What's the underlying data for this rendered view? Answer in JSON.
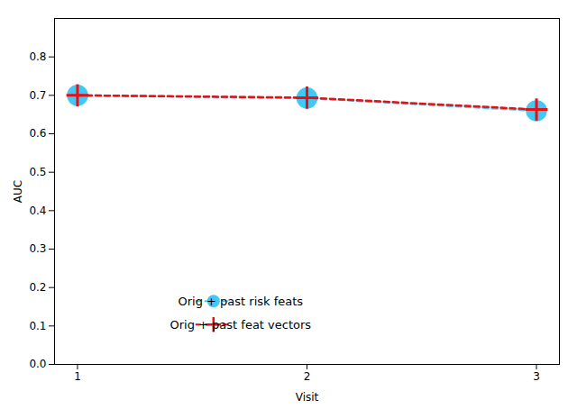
{
  "chart_data": {
    "type": "line",
    "xlabel": "Visit",
    "ylabel": "AUC",
    "x": [
      1,
      2,
      3
    ],
    "series": [
      {
        "name": "Orig + past risk feats",
        "color": "#42C8F5",
        "values": [
          0.7,
          0.693,
          0.66
        ],
        "marker": "circle",
        "line_style": "dashed"
      },
      {
        "name": "Orig + past feat vectors",
        "color": "#E81010",
        "values": [
          0.7,
          0.694,
          0.663
        ],
        "marker": "plus",
        "line_style": "dashed"
      }
    ],
    "xlim": [
      0.9,
      3.1
    ],
    "xticks": [
      1,
      2,
      3
    ],
    "ylim": [
      0,
      0.9
    ],
    "yticks": [
      {
        "value": 0,
        "label": "0.0"
      },
      0.1,
      0.2,
      0.3,
      0.4,
      0.5,
      0.6,
      0.7,
      0.8
    ],
    "grid": false,
    "legend": "lower left"
  }
}
